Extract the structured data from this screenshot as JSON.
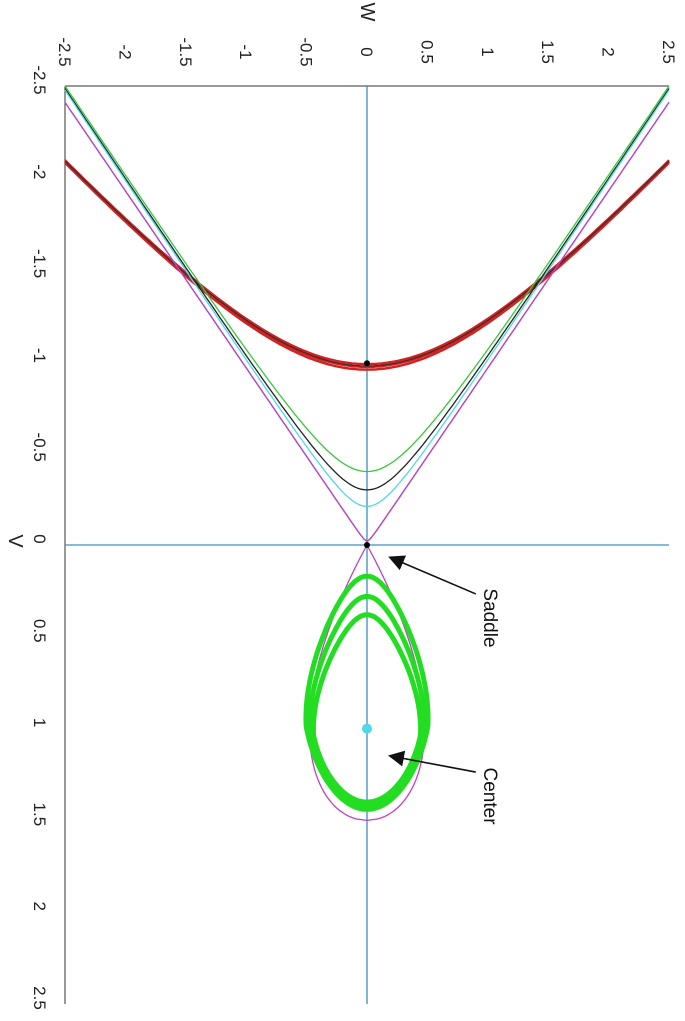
{
  "chart_data": {
    "type": "line",
    "title": "",
    "xlabel": "W",
    "ylabel": "V",
    "xlim": [
      -2.5,
      2.5
    ],
    "ylim": [
      -2.5,
      2.5
    ],
    "x_ticks": [
      "-2.5",
      "-2",
      "-1.5",
      "-1",
      "-0.5",
      "0",
      "0.5",
      "1",
      "1.5",
      "2",
      "2.5"
    ],
    "y_ticks": [
      "-2.5",
      "-2",
      "-1.5",
      "-1",
      "-0.5",
      "0",
      "0.5",
      "1",
      "1.5",
      "2",
      "2.5"
    ],
    "grid": false,
    "reference_lines": [
      {
        "axis": "w",
        "value": 0,
        "color": "#3a8fc4"
      },
      {
        "axis": "v",
        "value": 0,
        "color": "#3a8fc4"
      }
    ],
    "series": [
      {
        "color": "#d62020",
        "curve": "hyperbolic",
        "v_vertex": -0.955,
        "thick": true
      },
      {
        "color": "#d62020",
        "curve": "hyperbolic",
        "v_vertex": -0.97,
        "thick": true
      },
      {
        "color": "#d62020",
        "curve": "hyperbolic",
        "v_vertex": -0.985,
        "thick": true
      },
      {
        "color": "#333333",
        "curve": "hyperbolic",
        "v_vertex": -0.975
      },
      {
        "color": "#38c838",
        "curve": "hyperbolic",
        "v_vertex": -0.4
      },
      {
        "color": "#222222",
        "curve": "hyperbolic",
        "v_vertex": -0.3
      },
      {
        "color": "#4fd8e8",
        "curve": "hyperbolic",
        "v_vertex": -0.21
      },
      {
        "color": "#5577dd",
        "curve": "separatrix-open"
      },
      {
        "color": "#c040c8",
        "curve": "separatrix-open"
      },
      {
        "color": "#c040c8",
        "curve": "separatrix-loop"
      },
      {
        "color": "#22dd22",
        "curve": "closed-orbit",
        "v_min": 0.17,
        "v_max": 1.44,
        "w_max": 0.49
      },
      {
        "color": "#22dd22",
        "curve": "closed-orbit",
        "v_min": 0.28,
        "v_max": 1.42,
        "w_max": 0.46
      },
      {
        "color": "#22dd22",
        "curve": "closed-orbit",
        "v_min": 0.38,
        "v_max": 1.4,
        "w_max": 0.43
      }
    ],
    "points": [
      {
        "w": 0,
        "v": -0.99,
        "color": "#000000",
        "radius": 3
      },
      {
        "w": 0,
        "v": 0,
        "color": "#000000",
        "radius": 3
      },
      {
        "w": 0,
        "v": 1.0,
        "color": "#4fd8e8",
        "radius": 5
      }
    ],
    "annotations": [
      {
        "text": "Saddle",
        "text_w": 0.95,
        "text_v": 0.43,
        "arrow_to_w": 0.2,
        "arrow_to_v": 0.07
      },
      {
        "text": "Center",
        "text_w": 0.95,
        "text_v": 1.4,
        "arrow_to_w": 0.2,
        "arrow_to_v": 1.15
      }
    ]
  }
}
